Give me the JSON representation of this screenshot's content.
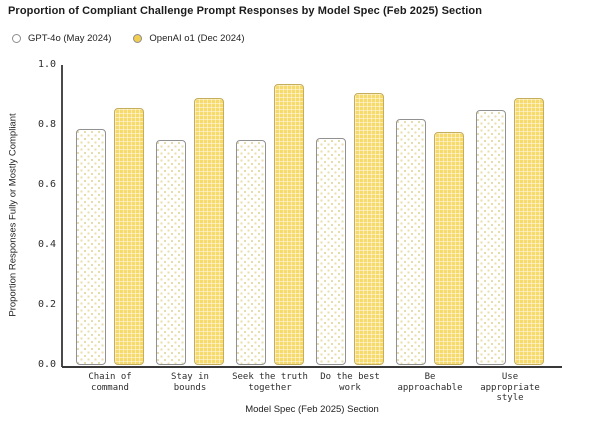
{
  "title": "Proportion of Compliant Challenge Prompt Responses by Model Spec (Feb 2025) Section",
  "legend": {
    "items": [
      {
        "label": "GPT-4o (May 2024)",
        "marker": "dotted-white-circle"
      },
      {
        "label": "OpenAI o1 (Dec 2024)",
        "marker": "yellow-circle"
      }
    ]
  },
  "chart_data": {
    "type": "bar",
    "title": "Proportion of Compliant Challenge Prompt Responses by Model Spec (Feb 2025) Section",
    "categories": [
      "Chain of\ncommand",
      "Stay in\nbounds",
      "Seek the truth\ntogether",
      "Do the best\nwork",
      "Be\napproachable",
      "Use appropriate\nstyle"
    ],
    "series": [
      {
        "name": "GPT-4o (May 2024)",
        "style": "white-with-yellow-dots",
        "values": [
          0.785,
          0.75,
          0.75,
          0.755,
          0.82,
          0.85
        ]
      },
      {
        "name": "OpenAI o1 (Dec 2024)",
        "style": "solid-yellow-grid",
        "values": [
          0.855,
          0.89,
          0.935,
          0.905,
          0.775,
          0.89
        ]
      }
    ],
    "xlabel": "Model Spec (Feb 2025) Section",
    "ylabel": "Proportion Responses Fully or Mostly Compliant",
    "ylim": [
      0.0,
      1.0
    ],
    "yticks": [
      "0.0",
      "0.2",
      "0.4",
      "0.6",
      "0.8",
      "1.0"
    ],
    "grid": false,
    "legend_position": "top-left",
    "colors": {
      "o1_fill": "#f7da6c",
      "o1_border": "#c4ae5e",
      "gpt4o_fill": "#ffffff",
      "gpt4o_dot": "#e8ddaa",
      "gpt4o_border": "#919191",
      "axis": "#3f3f3f",
      "text": "#1d1d1d"
    }
  }
}
